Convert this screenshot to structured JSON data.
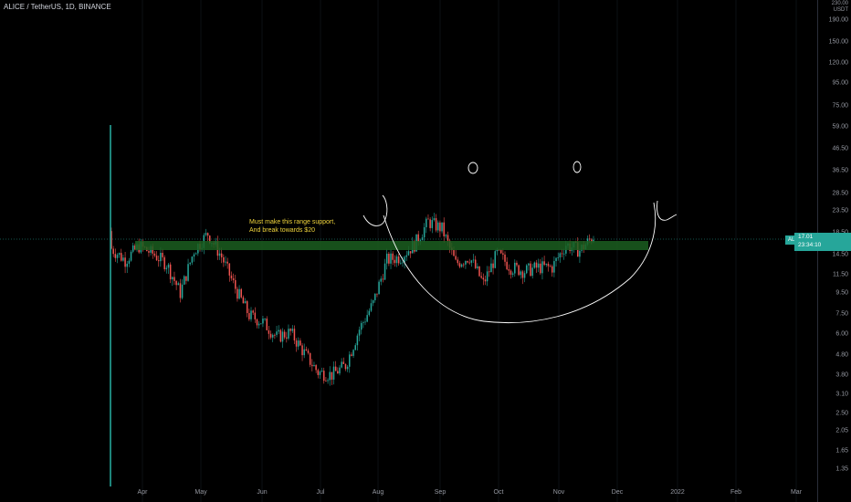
{
  "header": {
    "title": "ALICE / TetherUS, 1D, BINANCE"
  },
  "annotation": {
    "line1": "Must make this range support,",
    "line2": "And break towards $20"
  },
  "price_marker": {
    "symbol": "ALICEUSDT",
    "price": "17.01",
    "countdown": "23:34:10"
  },
  "axis": {
    "currency": "USDT",
    "y_ticks": [
      "230.00",
      "190.00",
      "150.00",
      "120.00",
      "95.00",
      "75.00",
      "59.00",
      "46.50",
      "36.50",
      "28.50",
      "23.50",
      "18.50",
      "14.50",
      "11.50",
      "9.50",
      "7.50",
      "6.00",
      "4.80",
      "3.80",
      "3.10",
      "2.50",
      "2.05",
      "1.65",
      "1.35"
    ],
    "x_ticks": [
      "Apr",
      "May",
      "Jun",
      "Jul",
      "Aug",
      "Sep",
      "Oct",
      "Nov",
      "Dec",
      "2022",
      "Feb",
      "Mar"
    ]
  },
  "colors": {
    "up": "#26a69a",
    "down": "#ef5350",
    "zone": "#1b5e20",
    "note": "#f0d43c",
    "drawing": "#ffffff"
  },
  "chart_data": {
    "type": "candlestick",
    "title": "ALICE / TetherUS, 1D, BINANCE",
    "y_scale": "log",
    "ylim": [
      1.2,
      230
    ],
    "support_zone": [
      14.3,
      16.3
    ],
    "x": [
      "2021-03-15",
      "2021-03-22",
      "2021-03-29",
      "2021-04-05",
      "2021-04-12",
      "2021-04-19",
      "2021-04-26",
      "2021-05-03",
      "2021-05-10",
      "2021-05-17",
      "2021-05-24",
      "2021-05-31",
      "2021-06-07",
      "2021-06-14",
      "2021-06-21",
      "2021-06-28",
      "2021-07-05",
      "2021-07-12",
      "2021-07-19",
      "2021-07-26",
      "2021-08-02",
      "2021-08-09",
      "2021-08-16",
      "2021-08-23",
      "2021-08-30",
      "2021-09-06",
      "2021-09-13",
      "2021-09-20",
      "2021-09-27",
      "2021-10-04",
      "2021-10-11",
      "2021-10-18",
      "2021-10-25",
      "2021-11-01",
      "2021-11-08",
      "2021-11-15"
    ],
    "close": [
      14.8,
      13.0,
      15.2,
      14.0,
      12.5,
      9.0,
      14.5,
      17.5,
      13.5,
      9.5,
      7.0,
      6.5,
      5.5,
      5.8,
      4.6,
      3.7,
      3.6,
      4.0,
      6.0,
      8.0,
      13.0,
      13.5,
      15.5,
      20.0,
      18.5,
      12.5,
      13.5,
      10.0,
      14.0,
      12.0,
      11.5,
      12.0,
      12.0,
      15.5,
      14.5,
      17.0
    ]
  }
}
